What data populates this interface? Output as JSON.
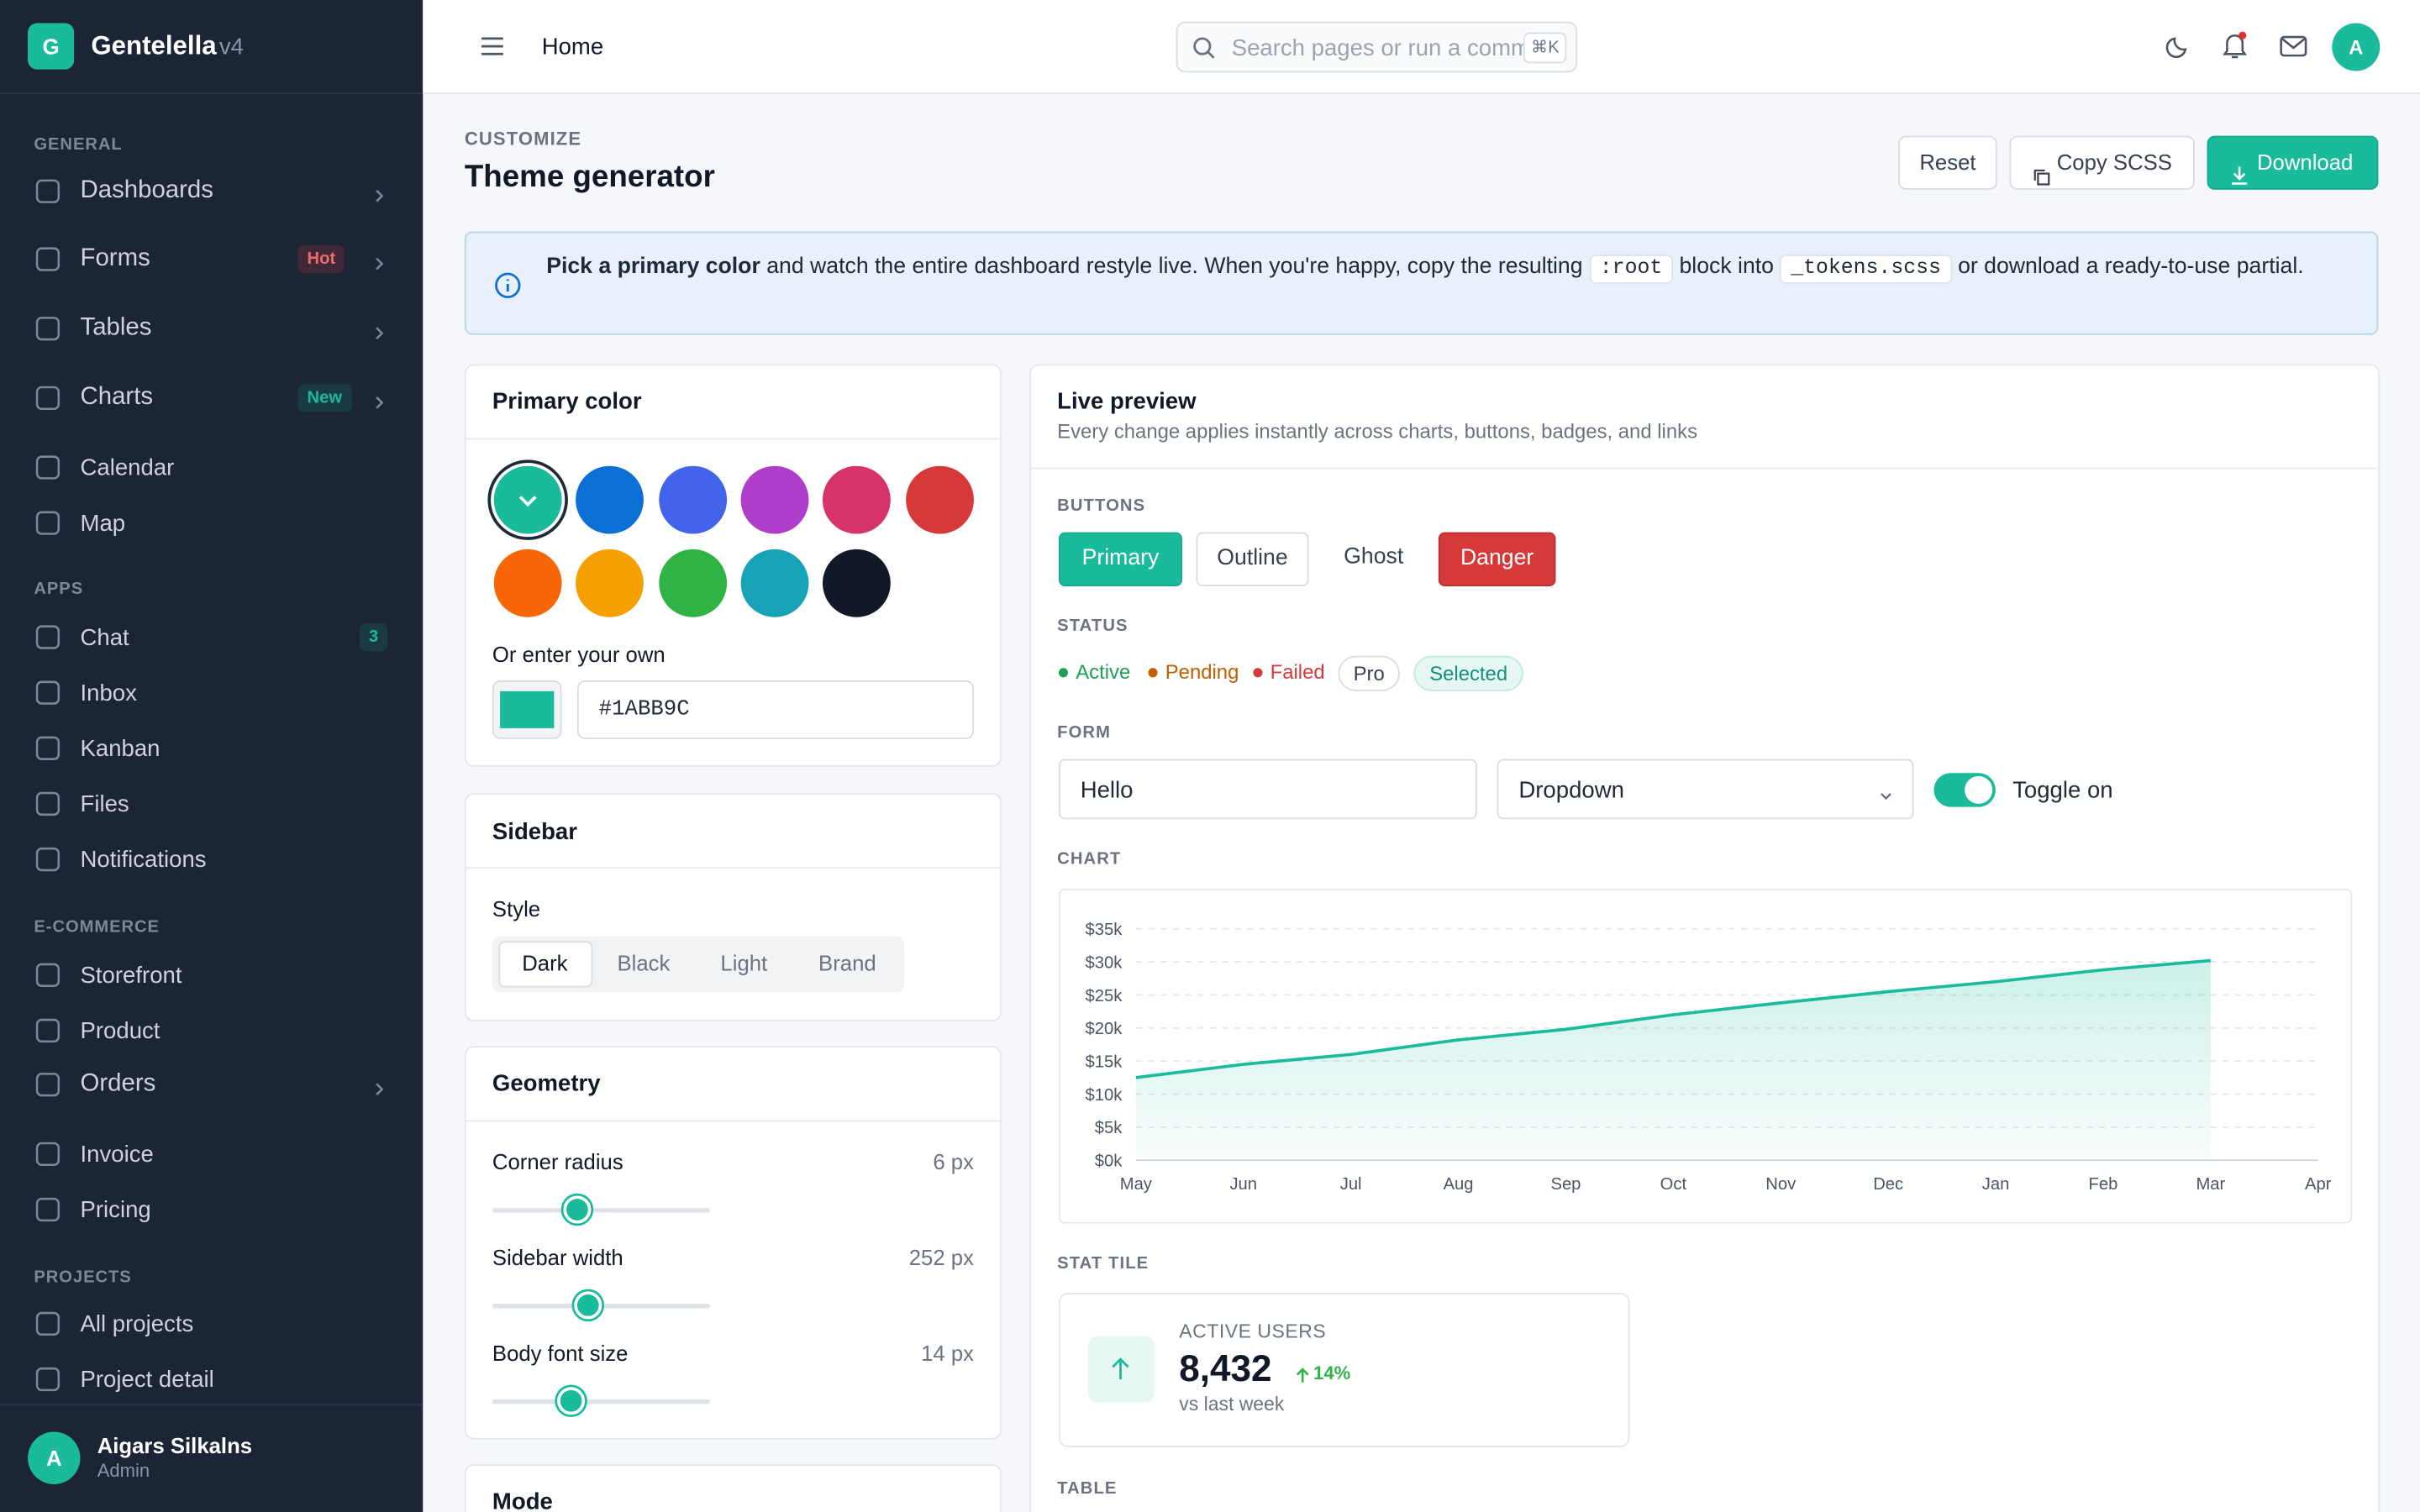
{
  "sidebar": {
    "logo": "G",
    "brand": "Gentelella",
    "version": "v4",
    "sections": [
      {
        "title": "GENERAL",
        "items": [
          {
            "label": "Dashboards",
            "chevron": true
          },
          {
            "label": "Forms",
            "badge": "Hot",
            "badge_tone": "danger",
            "chevron": true
          },
          {
            "label": "Tables",
            "chevron": true
          },
          {
            "label": "Charts",
            "badge": "New",
            "badge_tone": "success",
            "chevron": true
          },
          {
            "label": "Calendar"
          },
          {
            "label": "Map"
          }
        ]
      },
      {
        "title": "APPS",
        "items": [
          {
            "label": "Chat",
            "badge": "3",
            "badge_tone": "success"
          },
          {
            "label": "Inbox"
          },
          {
            "label": "Kanban"
          },
          {
            "label": "Files"
          },
          {
            "label": "Notifications"
          }
        ]
      },
      {
        "title": "E-COMMERCE",
        "items": [
          {
            "label": "Storefront"
          },
          {
            "label": "Product"
          },
          {
            "label": "Orders",
            "chevron": true
          },
          {
            "label": "Invoice"
          },
          {
            "label": "Pricing"
          }
        ]
      },
      {
        "title": "PROJECTS",
        "items": [
          {
            "label": "All projects"
          },
          {
            "label": "Project detail"
          }
        ]
      }
    ],
    "user": {
      "initial": "A",
      "name": "Aigars Silkalns",
      "role": "Admin"
    }
  },
  "topbar": {
    "crumb": "Home",
    "search": "Search pages or run a comm",
    "shortcut": "⌘K",
    "avatar": "A"
  },
  "header": {
    "eyebrow": "CUSTOMIZE",
    "title": "Theme generator",
    "reset": "Reset",
    "copy": "Copy SCSS",
    "download": "Download"
  },
  "alert": {
    "bold": "Pick a primary color",
    "text1": " and watch the entire dashboard restyle live. When you're happy, copy the resulting ",
    "code1": ":root",
    "text2": " block into ",
    "code2": "_tokens.scss",
    "text3": " or download a ready-to-use partial."
  },
  "primary": {
    "title": "Primary color",
    "swatches": [
      "#1ABB9C",
      "#0b6fd6",
      "#4263eb",
      "#ae3ec9",
      "#d6336c",
      "#d63939",
      "#f76707",
      "#f59f00",
      "#2fb344",
      "#17a2b8",
      "#111827"
    ],
    "selected": 0,
    "custom_label": "Or enter your own",
    "custom_value": "#1ABB9C"
  },
  "sidebar_card": {
    "title": "Sidebar",
    "style_label": "Style",
    "options": [
      "Dark",
      "Black",
      "Light",
      "Brand"
    ],
    "selected": 0
  },
  "geometry": {
    "title": "Geometry",
    "rows": [
      {
        "label": "Corner radius",
        "value": "6 px"
      },
      {
        "label": "Sidebar width",
        "value": "252 px"
      },
      {
        "label": "Body font size",
        "value": "14 px"
      }
    ]
  },
  "mode": {
    "title": "Mode"
  },
  "preview": {
    "title": "Live preview",
    "subtitle": "Every change applies instantly across charts, buttons, badges, and links",
    "buttons_label": "BUTTONS",
    "buttons": [
      "Primary",
      "Outline",
      "Ghost",
      "Danger"
    ],
    "status_label": "STATUS",
    "status": [
      {
        "label": "Active",
        "tone": "success"
      },
      {
        "label": "Pending",
        "tone": "warning"
      },
      {
        "label": "Failed",
        "tone": "danger"
      }
    ],
    "pills": [
      "Pro",
      "Selected"
    ],
    "form_label": "FORM",
    "input": "Hello",
    "select": "Dropdown",
    "toggle": "Toggle on",
    "toggle_on": true,
    "chart_label": "CHART",
    "chart": {
      "type": "line",
      "color": "#1ABB9C",
      "categories": [
        "May",
        "Jun",
        "Jul",
        "Aug",
        "Sep",
        "Oct",
        "Nov",
        "Dec",
        "Jan",
        "Feb",
        "Mar",
        "Apr"
      ],
      "values": [
        12.5,
        14.5,
        16,
        18.2,
        19.8,
        22,
        23.8,
        25.5,
        27,
        28.8,
        30.2,
        null
      ],
      "ylim": [
        0,
        35
      ],
      "yticks": [
        {
          "value": 0,
          "label": "$0k"
        },
        {
          "value": 5,
          "label": "$5k"
        },
        {
          "value": 10,
          "label": "$10k"
        },
        {
          "value": 15,
          "label": "$15k"
        },
        {
          "value": 20,
          "label": "$20k"
        },
        {
          "value": 25,
          "label": "$25k"
        },
        {
          "value": 30,
          "label": "$30k"
        },
        {
          "value": 35,
          "label": "$35k"
        }
      ],
      "grid": true
    },
    "stat_label": "STAT TILE",
    "stat": {
      "title": "ACTIVE USERS",
      "value": "8,432",
      "change": "14%",
      "note": "vs last week"
    },
    "table_label": "TABLE"
  }
}
